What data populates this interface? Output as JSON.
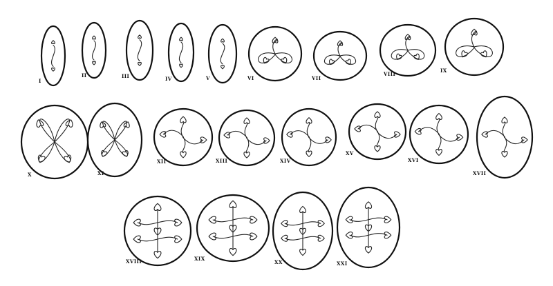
{
  "figure": {
    "labels": [
      "I",
      "II",
      "III",
      "IV",
      "V",
      "VI",
      "VII",
      "VIII",
      "IX",
      "X",
      "XI",
      "XII",
      "XIII",
      "XIV",
      "XV",
      "XVI",
      "XVII",
      "XVIII",
      "XIX",
      "XX",
      "XXI"
    ]
  }
}
